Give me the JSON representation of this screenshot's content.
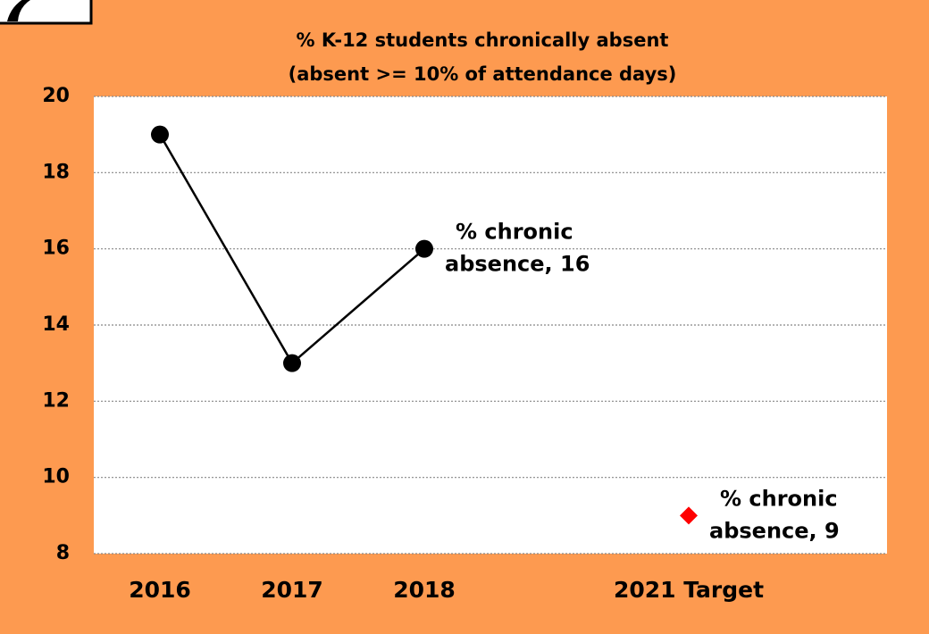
{
  "chart_data": {
    "type": "line",
    "title": "% K-12 students chronically absent",
    "subtitle": "(absent >= 10% of attendance days)",
    "categories": [
      "2016",
      "2017",
      "2018",
      null,
      "2021 Target",
      null
    ],
    "series": [
      {
        "color": "#000000",
        "marker": "circle",
        "line": true,
        "values": [
          19,
          13,
          16,
          null,
          null,
          null
        ],
        "value_labels": [
          null,
          null,
          "% chronic absence, 16",
          null,
          null,
          null
        ]
      },
      {
        "color": "#ff0000",
        "marker": "diamond",
        "line": false,
        "values": [
          null,
          null,
          null,
          null,
          9,
          null
        ],
        "value_labels": [
          null,
          null,
          null,
          null,
          "% chronic absence, 9",
          null
        ]
      }
    ],
    "ylim": [
      8,
      20
    ],
    "yticks": [
      8,
      10,
      12,
      14,
      16,
      18,
      20
    ],
    "grid": true
  }
}
